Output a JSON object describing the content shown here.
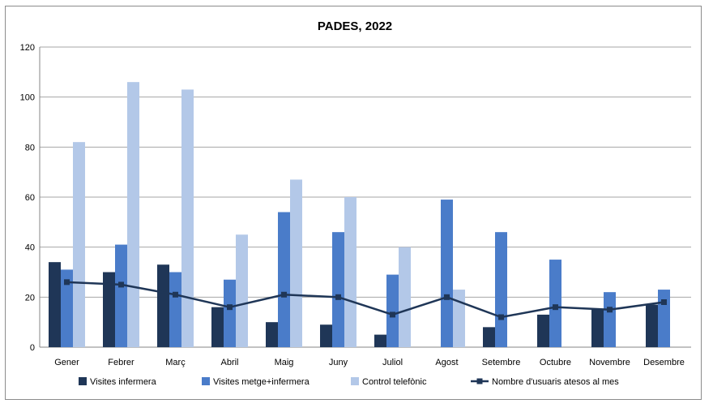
{
  "chart_data": {
    "type": "bar",
    "title": "PADES, 2022",
    "categories": [
      "Gener",
      "Febrer",
      "Març",
      "Abril",
      "Maig",
      "Juny",
      "Juliol",
      "Agost",
      "Setembre",
      "Octubre",
      "Novembre",
      "Desembre"
    ],
    "ylim": [
      0,
      120
    ],
    "yticks": [
      "0",
      "20",
      "40",
      "60",
      "80",
      "100",
      "120"
    ],
    "grid": true,
    "legend_position": "bottom",
    "series": [
      {
        "name": "Visites infermera",
        "kind": "bar",
        "color": "#1f3657",
        "values": [
          34,
          30,
          33,
          16,
          10,
          9,
          5,
          0,
          8,
          13,
          15,
          17
        ]
      },
      {
        "name": "Visites metge+infermera",
        "kind": "bar",
        "color": "#4a7cc9",
        "values": [
          31,
          41,
          30,
          27,
          54,
          46,
          29,
          59,
          46,
          35,
          22,
          23
        ]
      },
      {
        "name": "Control telefònic",
        "kind": "bar",
        "color": "#b3c8e8",
        "values": [
          82,
          106,
          103,
          45,
          67,
          60,
          40,
          23,
          0,
          0,
          0,
          0
        ]
      },
      {
        "name": "Nombre d'usuaris atesos al mes",
        "kind": "line",
        "color": "#1f3657",
        "values": [
          26,
          25,
          21,
          16,
          21,
          20,
          13,
          20,
          12,
          16,
          15,
          18
        ]
      }
    ]
  }
}
